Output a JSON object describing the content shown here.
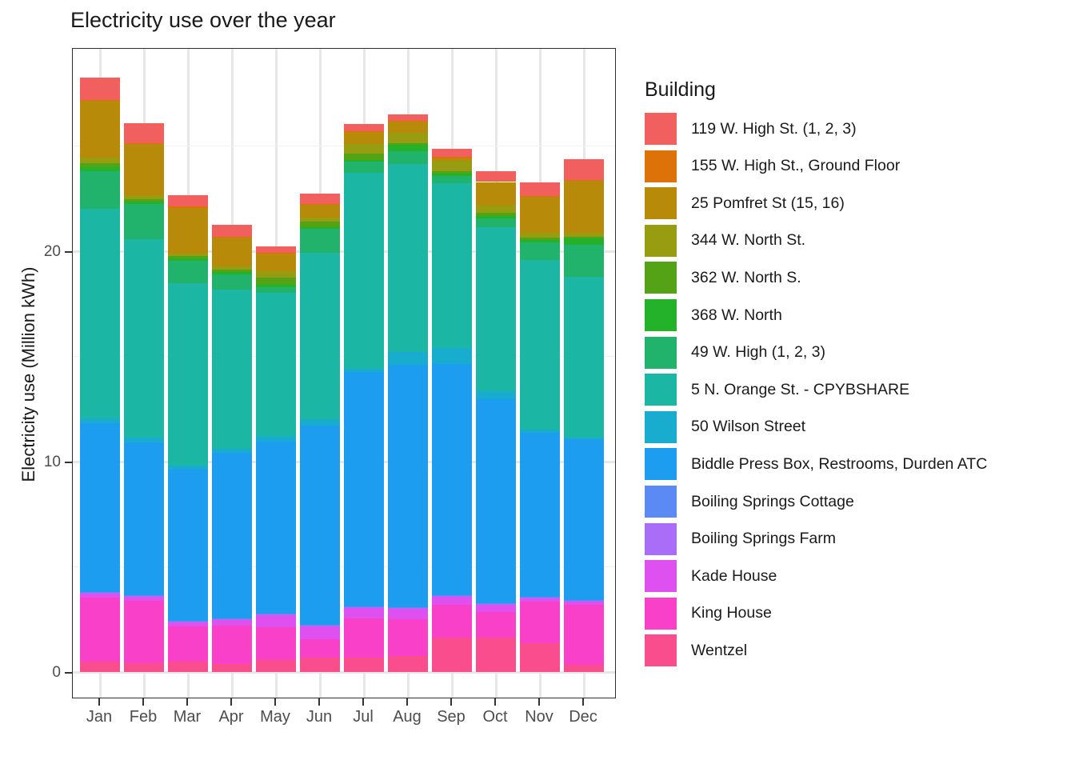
{
  "chart": {
    "title": "Electricity use over the year",
    "y_axis": {
      "label": "Electricity use (Million kWh)",
      "major_ticks": [
        0,
        10,
        20
      ],
      "minor_ticks": [
        5,
        15,
        25
      ]
    },
    "x_axis": {
      "tick_labels": [
        "Jan",
        "Feb",
        "Mar",
        "Apr",
        "May",
        "Jun",
        "Jul",
        "Aug",
        "Sep",
        "Oct",
        "Nov",
        "Dec"
      ]
    },
    "legend": {
      "title": "Building"
    }
  },
  "chart_data": {
    "type": "bar",
    "stacked": true,
    "title": "Electricity use over the year",
    "xlabel": "",
    "ylabel": "Electricity use (Million kWh)",
    "categories": [
      "Jan",
      "Feb",
      "Mar",
      "Apr",
      "May",
      "Jun",
      "Jul",
      "Aug",
      "Sep",
      "Oct",
      "Nov",
      "Dec"
    ],
    "ylim": [
      0,
      29.7
    ],
    "grid": "major and minor horizontal, major vertical",
    "legend_position": "right",
    "stack_note": "first series renders at top of each bar, last series at bottom",
    "series": [
      {
        "name": "119 W. High St. (1, 2, 3)",
        "color": "#F25F5F",
        "values": [
          1.06,
          0.95,
          0.53,
          0.57,
          0.3,
          0.49,
          0.33,
          0.3,
          0.38,
          0.46,
          0.65,
          0.99
        ]
      },
      {
        "name": "155 W. High St., Ground Floor",
        "color": "#DD7208",
        "values": [
          0.05,
          0.05,
          0.05,
          0.05,
          0.05,
          0.05,
          0.05,
          0.05,
          0.05,
          0.05,
          0.05,
          0.05
        ]
      },
      {
        "name": "25 Pomfret St (15, 16)",
        "color": "#B88A09",
        "values": [
          2.7,
          2.43,
          2.17,
          1.37,
          0.84,
          0.61,
          0.57,
          0.53,
          0.15,
          1.14,
          1.71,
          2.47
        ]
      },
      {
        "name": "344 W. North St.",
        "color": "#979C10",
        "values": [
          0.27,
          0.19,
          0.11,
          0.15,
          0.3,
          0.19,
          0.46,
          0.49,
          0.46,
          0.34,
          0.23,
          0.19
        ]
      },
      {
        "name": "362 W. North S.",
        "color": "#54A316",
        "values": [
          0.19,
          0.11,
          0.15,
          0.11,
          0.34,
          0.27,
          0.3,
          0.08,
          0.15,
          0.15,
          0.11,
          0.08
        ]
      },
      {
        "name": "368 W. North",
        "color": "#23B229",
        "values": [
          0.19,
          0.11,
          0.11,
          0.11,
          0.11,
          0.08,
          0.08,
          0.3,
          0.11,
          0.11,
          0.11,
          0.3
        ]
      },
      {
        "name": "49 W. High (1, 2, 3)",
        "color": "#21B36B",
        "values": [
          1.79,
          1.67,
          1.06,
          0.72,
          0.27,
          1.14,
          0.53,
          0.61,
          0.34,
          0.42,
          0.84,
          1.52
        ]
      },
      {
        "name": "5 N. Orange St. - CPYBSHARE",
        "color": "#1BB7A4",
        "values": [
          9.96,
          9.43,
          8.67,
          7.57,
          6.81,
          7.91,
          9.32,
          8.94,
          7.83,
          7.79,
          8.06,
          7.64
        ]
      },
      {
        "name": "50 Wilson Street",
        "color": "#18ADCE",
        "values": [
          0.23,
          0.23,
          0.19,
          0.19,
          0.27,
          0.3,
          0.15,
          0.61,
          0.76,
          0.38,
          0.15,
          0.08
        ]
      },
      {
        "name": "Biddle Press Box, Restrooms, Durden ATC",
        "color": "#1C9DEF",
        "values": [
          8.02,
          7.26,
          7.18,
          7.87,
          8.17,
          9.46,
          11.14,
          11.52,
          10.98,
          9.69,
          7.79,
          7.64
        ]
      },
      {
        "name": "Boiling Springs Cottage",
        "color": "#5B8AF4",
        "values": [
          0.04,
          0.04,
          0.04,
          0.04,
          0.04,
          0.04,
          0.04,
          0.04,
          0.04,
          0.04,
          0.04,
          0.04
        ]
      },
      {
        "name": "Boiling Springs Farm",
        "color": "#A96DF8",
        "values": [
          0.04,
          0.04,
          0.04,
          0.04,
          0.04,
          0.04,
          0.04,
          0.04,
          0.04,
          0.04,
          0.04,
          0.04
        ]
      },
      {
        "name": "Kade House",
        "color": "#DE50F0",
        "values": [
          0.19,
          0.19,
          0.19,
          0.27,
          0.57,
          0.61,
          0.49,
          0.49,
          0.38,
          0.34,
          0.15,
          0.15
        ]
      },
      {
        "name": "King House",
        "color": "#F840C8",
        "values": [
          3.04,
          2.97,
          1.67,
          1.82,
          1.56,
          0.87,
          1.86,
          1.75,
          1.56,
          1.22,
          1.98,
          2.85
        ]
      },
      {
        "name": "Wentzel",
        "color": "#FA4D8D",
        "values": [
          0.49,
          0.42,
          0.49,
          0.38,
          0.57,
          0.68,
          0.68,
          0.76,
          1.63,
          1.63,
          1.37,
          0.34
        ]
      }
    ]
  }
}
